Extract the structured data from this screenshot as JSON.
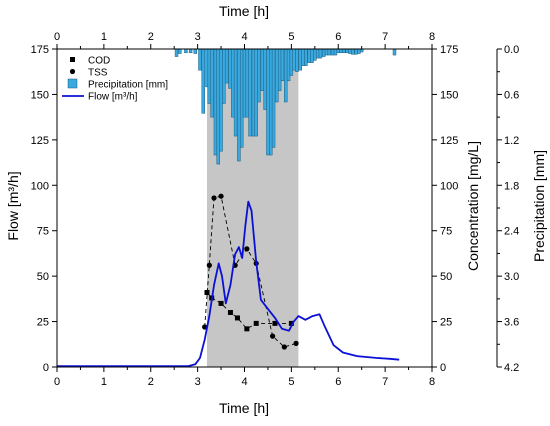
{
  "chart_data": {
    "type": "line",
    "axis_titles": {
      "bottom": "Time [h]",
      "top": "Time [h]",
      "left": "Flow [m³/h]",
      "right_inner": "Concentration [mg/L]",
      "right_outer": "Precipitation [mm]"
    },
    "x_range": [
      0,
      8
    ],
    "x_ticks": [
      "0",
      "1",
      "2",
      "3",
      "4",
      "5",
      "6",
      "7",
      "8"
    ],
    "flow_range": [
      0,
      175
    ],
    "flow_ticks": [
      "0",
      "25",
      "50",
      "75",
      "100",
      "125",
      "150",
      "175"
    ],
    "conc_range": [
      0,
      175
    ],
    "conc_ticks": [
      "0",
      "25",
      "50",
      "75",
      "100",
      "125",
      "150",
      "175"
    ],
    "precip_range": [
      4.2,
      0.0
    ],
    "precip_ticks": [
      "0.0",
      "0.6",
      "1.2",
      "1.8",
      "2.4",
      "3.0",
      "3.6",
      "4.2"
    ],
    "shaded_region": {
      "x_start": 3.2,
      "x_end": 5.15
    },
    "legend_position": "top-left",
    "series": [
      {
        "name": "COD",
        "kind": "square-markers-dashed",
        "color": "#000000",
        "points": [
          [
            3.2,
            41
          ],
          [
            3.3,
            38
          ],
          [
            3.5,
            35
          ],
          [
            3.7,
            30
          ],
          [
            3.85,
            27
          ],
          [
            4.05,
            21
          ],
          [
            4.25,
            24
          ],
          [
            4.65,
            24
          ],
          [
            5.0,
            24
          ]
        ]
      },
      {
        "name": "TSS",
        "kind": "circle-markers-dashed",
        "color": "#000000",
        "points": [
          [
            3.15,
            22
          ],
          [
            3.25,
            56
          ],
          [
            3.35,
            93
          ],
          [
            3.5,
            94
          ],
          [
            3.8,
            56
          ],
          [
            4.05,
            65
          ],
          [
            4.25,
            57
          ],
          [
            4.6,
            17
          ],
          [
            4.85,
            11
          ],
          [
            5.1,
            13
          ]
        ]
      },
      {
        "name": "Precipitation [mm]",
        "kind": "bars",
        "color": "#3aa9df",
        "bin_width": 0.0625,
        "values": [
          [
            2.55,
            0.1
          ],
          [
            2.62,
            0.06
          ],
          [
            2.75,
            0.05
          ],
          [
            2.85,
            0.05
          ],
          [
            2.95,
            0.06
          ],
          [
            3.05,
            0.28
          ],
          [
            3.12,
            0.85
          ],
          [
            3.2,
            0.5
          ],
          [
            3.25,
            0.72
          ],
          [
            3.31,
            0.9
          ],
          [
            3.38,
            1.4
          ],
          [
            3.44,
            1.52
          ],
          [
            3.5,
            1.35
          ],
          [
            3.56,
            0.72
          ],
          [
            3.62,
            0.45
          ],
          [
            3.69,
            0.52
          ],
          [
            3.75,
            0.9
          ],
          [
            3.81,
            1.15
          ],
          [
            3.88,
            1.48
          ],
          [
            3.94,
            1.3
          ],
          [
            4.0,
            0.9
          ],
          [
            4.06,
            0.9
          ],
          [
            4.12,
            1.15
          ],
          [
            4.19,
            1.15
          ],
          [
            4.25,
            1.15
          ],
          [
            4.31,
            0.7
          ],
          [
            4.38,
            0.55
          ],
          [
            4.44,
            0.8
          ],
          [
            4.5,
            1.4
          ],
          [
            4.56,
            1.4
          ],
          [
            4.62,
            1.3
          ],
          [
            4.69,
            0.7
          ],
          [
            4.75,
            0.55
          ],
          [
            4.81,
            0.42
          ],
          [
            4.88,
            0.7
          ],
          [
            4.94,
            0.42
          ],
          [
            5.0,
            0.35
          ],
          [
            5.06,
            0.28
          ],
          [
            5.12,
            0.3
          ],
          [
            5.19,
            0.28
          ],
          [
            5.25,
            0.22
          ],
          [
            5.31,
            0.22
          ],
          [
            5.38,
            0.18
          ],
          [
            5.44,
            0.18
          ],
          [
            5.5,
            0.15
          ],
          [
            5.56,
            0.12
          ],
          [
            5.62,
            0.12
          ],
          [
            5.69,
            0.1
          ],
          [
            5.75,
            0.08
          ],
          [
            5.81,
            0.08
          ],
          [
            5.88,
            0.08
          ],
          [
            5.94,
            0.08
          ],
          [
            6.0,
            0.05
          ],
          [
            6.06,
            0.05
          ],
          [
            6.12,
            0.05
          ],
          [
            6.19,
            0.05
          ],
          [
            6.25,
            0.06
          ],
          [
            6.31,
            0.07
          ],
          [
            6.38,
            0.07
          ],
          [
            6.44,
            0.06
          ],
          [
            6.5,
            0.04
          ],
          [
            7.2,
            0.08
          ]
        ]
      },
      {
        "name": "Flow [m³/h]",
        "kind": "line",
        "color": "#0b10d6",
        "points": [
          [
            0,
            0.5
          ],
          [
            2.8,
            0.5
          ],
          [
            2.95,
            1.5
          ],
          [
            3.05,
            5
          ],
          [
            3.15,
            15
          ],
          [
            3.25,
            28
          ],
          [
            3.35,
            45
          ],
          [
            3.45,
            57
          ],
          [
            3.52,
            50
          ],
          [
            3.6,
            35
          ],
          [
            3.7,
            45
          ],
          [
            3.8,
            62
          ],
          [
            3.88,
            66
          ],
          [
            3.95,
            60
          ],
          [
            4.02,
            78
          ],
          [
            4.08,
            91
          ],
          [
            4.15,
            86
          ],
          [
            4.25,
            58
          ],
          [
            4.35,
            37
          ],
          [
            4.5,
            32
          ],
          [
            4.65,
            27
          ],
          [
            4.8,
            21
          ],
          [
            4.95,
            20
          ],
          [
            5.05,
            25
          ],
          [
            5.15,
            28
          ],
          [
            5.3,
            26
          ],
          [
            5.45,
            28
          ],
          [
            5.6,
            29
          ],
          [
            5.7,
            23
          ],
          [
            5.9,
            12
          ],
          [
            6.1,
            8
          ],
          [
            6.4,
            6
          ],
          [
            6.8,
            5
          ],
          [
            7.1,
            4.5
          ],
          [
            7.3,
            4
          ]
        ]
      }
    ]
  }
}
